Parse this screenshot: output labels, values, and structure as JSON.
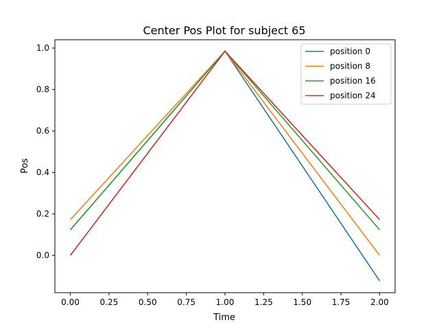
{
  "chart_data": {
    "type": "line",
    "title": "Center Pos Plot for subject 65",
    "xlabel": "Time",
    "ylabel": "Pos",
    "xlim": [
      -0.1,
      2.1
    ],
    "ylim": [
      -0.18,
      1.04
    ],
    "xticks": [
      0.0,
      0.25,
      0.5,
      0.75,
      1.0,
      1.25,
      1.5,
      1.75,
      2.0
    ],
    "xtick_labels": [
      "0.00",
      "0.25",
      "0.50",
      "0.75",
      "1.00",
      "1.25",
      "1.50",
      "1.75",
      "2.00"
    ],
    "yticks": [
      0.0,
      0.2,
      0.4,
      0.6,
      0.8,
      1.0
    ],
    "ytick_labels": [
      "0.0",
      "0.2",
      "0.4",
      "0.6",
      "0.8",
      "1.0"
    ],
    "grid": false,
    "legend_position": "top-right",
    "x": [
      0,
      1,
      2
    ],
    "series": [
      {
        "name": " position 0",
        "values": [
          0.123,
          0.985,
          -0.123
        ],
        "color": "#1f77b4"
      },
      {
        "name": " position 8",
        "values": [
          0.172,
          0.985,
          0.0
        ],
        "color": "#ff7f0e"
      },
      {
        "name": " position 16",
        "values": [
          0.123,
          0.985,
          0.123
        ],
        "color": "#2ca02c"
      },
      {
        "name": " position 24",
        "values": [
          0.0,
          0.985,
          0.172
        ],
        "color": "#d62728"
      }
    ]
  }
}
